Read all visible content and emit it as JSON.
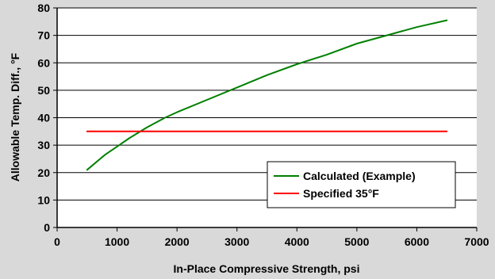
{
  "chart_data": {
    "type": "line",
    "xlabel": "In-Place Compressive Strength, psi",
    "ylabel": "Allowable Temp. Diff., °F",
    "xlim": [
      0,
      7000
    ],
    "ylim": [
      0,
      80
    ],
    "xticks": [
      0,
      1000,
      2000,
      3000,
      4000,
      5000,
      6000,
      7000
    ],
    "yticks": [
      0,
      10,
      20,
      30,
      40,
      50,
      60,
      70,
      80
    ],
    "grid": "horizontal",
    "legend_position": "bottom-right",
    "series": [
      {
        "name": "Calculated (Example)",
        "color": "#008000",
        "x": [
          500,
          800,
          1000,
          1200,
          1500,
          1800,
          2000,
          2500,
          3000,
          3500,
          4000,
          4500,
          5000,
          5500,
          6000,
          6500
        ],
        "y": [
          21,
          26.5,
          29.5,
          32.5,
          36.5,
          40,
          42,
          46.5,
          51,
          55.5,
          59.5,
          63,
          67,
          70,
          73,
          75.5
        ]
      },
      {
        "name": "Specified 35°F",
        "color": "#ff0000",
        "x": [
          500,
          6500
        ],
        "y": [
          35,
          35
        ]
      }
    ]
  }
}
